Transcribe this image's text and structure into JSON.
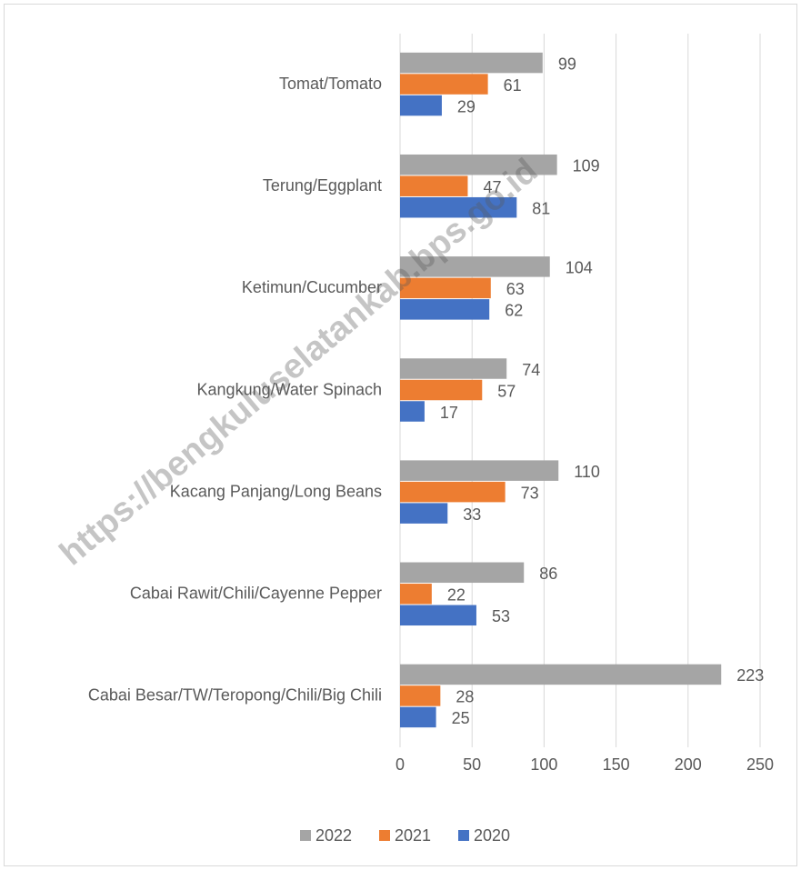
{
  "chart_data": {
    "type": "bar",
    "orientation": "horizontal",
    "categories": [
      "Tomat/Tomato",
      "Terung/Eggplant",
      "Ketimun/Cucumber",
      "Kangkung/Water Spinach",
      "Kacang Panjang/Long Beans",
      "Cabai Rawit/Chili/Cayenne Pepper",
      "Cabai Besar/TW/Teropong/Chili/Big Chili"
    ],
    "series": [
      {
        "name": "2022",
        "color": "#a5a5a5",
        "values": [
          99,
          109,
          104,
          74,
          110,
          86,
          223
        ]
      },
      {
        "name": "2021",
        "color": "#ed7d31",
        "values": [
          61,
          47,
          63,
          57,
          73,
          22,
          28
        ]
      },
      {
        "name": "2020",
        "color": "#4472c4",
        "values": [
          29,
          81,
          62,
          17,
          33,
          53,
          25
        ]
      }
    ],
    "xlim": [
      0,
      250
    ],
    "xticks": [
      0,
      50,
      100,
      150,
      200,
      250
    ],
    "grid": true,
    "legend": "bottom",
    "watermark": "https://bengkuluselatankab.bps.go.id"
  }
}
